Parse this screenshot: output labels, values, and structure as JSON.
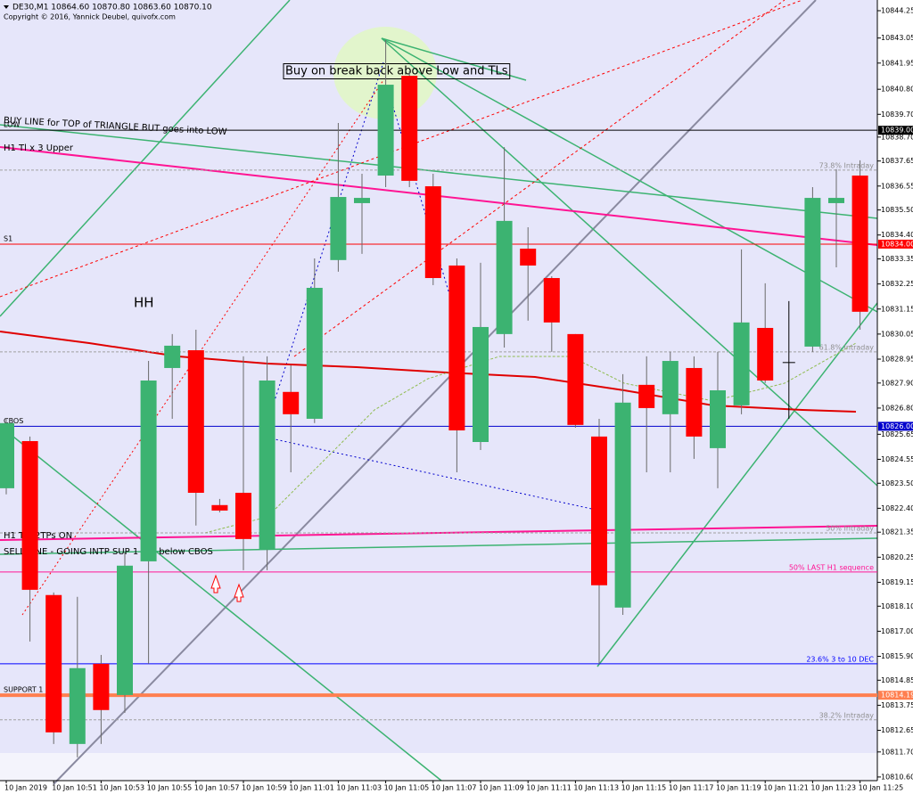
{
  "chart_data": {
    "type": "candlestick",
    "title": "DE30,M1  10864.60 10870.80 10863.60 10870.10",
    "subtitle": "Copyright © 2016, Yannick Deubel, quivofx.com",
    "categories": [
      "10 Jan 2019",
      null,
      "10 Jan 10:51",
      null,
      "10 Jan 10:53",
      null,
      "10 Jan 10:55",
      null,
      "10 Jan 10:57",
      null,
      "10 Jan 10:59",
      null,
      "10 Jan 11:01",
      null,
      "10 Jan 11:03",
      null,
      "10 Jan 11:05",
      null,
      "10 Jan 11:07",
      null,
      "10 Jan 11:09",
      null,
      "10 Jan 11:11",
      null,
      "10 Jan 11:13",
      null,
      "10 Jan 11:15",
      null,
      "10 Jan 11:17",
      null,
      "10 Jan 11:19",
      null,
      "10 Jan 11:21",
      null,
      "10 Jan 11:23",
      null,
      "10 Jan 11:25"
    ],
    "open": [
      10823.28,
      10825.35,
      10818.59,
      10812.05,
      10815.57,
      10814.2,
      10820.07,
      10828.56,
      10829.34,
      10822.54,
      10823.08,
      10820.58,
      10827.51,
      10826.33,
      10833.3,
      10835.8,
      10837.01,
      10841.39,
      10836.54,
      10833.06,
      10825.31,
      10830.05,
      10833.8,
      10832.51,
      10830.05,
      10825.55,
      10818.04,
      10827.82,
      10826.53,
      10828.56,
      10825.04,
      10826.92,
      10830.32,
      10828.8,
      10829.5,
      10835.8,
      10837.01
    ],
    "high": [
      10826.33,
      10825.55,
      10818.7,
      10818.51,
      10815.96,
      10820.46,
      10828.87,
      10830.05,
      10830.24,
      10822.81,
      10829.07,
      10829.07,
      10828.68,
      10833.37,
      10839.32,
      10837.09,
      10842.96,
      10841.59,
      10837.09,
      10833.37,
      10833.18,
      10838.26,
      10834.74,
      10832.59,
      10830.05,
      10826.33,
      10828.29,
      10829.07,
      10829.27,
      10829.07,
      10829.27,
      10833.77,
      10832.28,
      10831.5,
      10836.5,
      10837.29,
      10837.68
    ],
    "low": [
      10823.01,
      10816.55,
      10812.05,
      10811.46,
      10812.05,
      10813.42,
      10815.57,
      10826.33,
      10821.64,
      10822.22,
      10819.68,
      10819.68,
      10823.98,
      10826.14,
      10832.79,
      10833.57,
      10836.5,
      10836.5,
      10832.2,
      10823.98,
      10824.96,
      10829.46,
      10830.64,
      10829.27,
      10825.94,
      10815.57,
      10817.72,
      10823.98,
      10823.98,
      10824.57,
      10823.28,
      10826.53,
      10827.9,
      10826.33,
      10829.27,
      10832.98,
      10830.24
    ],
    "close": [
      10826.14,
      10818.82,
      10812.56,
      10815.38,
      10813.54,
      10819.88,
      10828.01,
      10829.54,
      10823.08,
      10822.3,
      10821.05,
      10828.01,
      10826.53,
      10832.08,
      10836.07,
      10836.03,
      10841.0,
      10836.78,
      10832.51,
      10825.82,
      10830.36,
      10835.02,
      10833.06,
      10830.56,
      10826.06,
      10819.02,
      10827.04,
      10826.8,
      10828.87,
      10825.55,
      10827.58,
      10830.56,
      10828.01,
      10828.8,
      10836.03,
      10836.03,
      10831.03
    ],
    "up_color": "#3cb371",
    "down_color": "#ff0000",
    "doji_color": "#000000",
    "ylim": [
      10810.44,
      10844.72
    ],
    "yticks": [
      10844.25,
      10843.05,
      10841.95,
      {
        "value": 10840.8,
        "label": "10840.80"
      },
      {
        "value": 10839.7,
        "label": "10839.70"
      },
      {
        "value": 10838.7,
        "label": "10838.70"
      },
      10837.65,
      10836.55,
      {
        "value": 10835.5,
        "label": "10835.50"
      },
      {
        "value": 10834.4,
        "label": "10834.40"
      },
      10833.35,
      10832.25,
      10831.15,
      10830.05,
      10828.95,
      {
        "value": 10827.9,
        "label": "10827.90"
      },
      {
        "value": 10826.8,
        "label": "10826.80"
      },
      10825.65,
      10824.55,
      {
        "value": 10823.5,
        "label": "10823.50"
      },
      {
        "value": 10822.4,
        "label": "10822.40"
      },
      10821.35,
      10820.25,
      10819.15,
      {
        "value": 10818.1,
        "label": "10818.10"
      },
      {
        "value": 10817,
        "label": "10817.00"
      },
      {
        "value": 10815.9,
        "label": "10815.90"
      },
      10814.85,
      10813.75,
      10812.65,
      {
        "value": 10811.7,
        "label": "10811.70"
      },
      {
        "value": 10810.6,
        "label": "10810.60"
      }
    ],
    "levels": [
      {
        "name": "LOW",
        "value": 10839,
        "label": "10839.00",
        "color": "#000000"
      },
      {
        "name": "S1",
        "value": 10834,
        "label": "10834.00",
        "color": "#ff0000"
      },
      {
        "name": "CBOS",
        "value": 10826,
        "label": "10826.00",
        "color": "#0000cd"
      },
      {
        "name": "SUPPORT 1",
        "value": 10814.19,
        "label": "10814.19",
        "color": "#ff7f50"
      }
    ],
    "fib_levels": [
      {
        "value": 10837.25,
        "label": "73.8%  Intraday",
        "color": "#a0a0a0"
      },
      {
        "value": 10829.27,
        "label": "61.8%  Intraday",
        "color": "#a0a0a0"
      },
      {
        "value": 10821.32,
        "label": "50%  Intraday",
        "color": "#a0a0a0"
      },
      {
        "value": 10819.6,
        "label": "50%  LAST H1 sequence",
        "color": "#ff1493"
      },
      {
        "value": 10815.57,
        "label": "23.6% 3 to 10 DEC",
        "color": "#0000ff"
      },
      {
        "value": 10813.11,
        "label": "38.2%  Intraday",
        "color": "#a0a0a0"
      }
    ],
    "annotations": [
      "Buy on break back above Low and TLs",
      "BUY LINE for TOP of TRIANGLE BUT goes into LOW",
      "H1 Tl x 3 Upper",
      "HH",
      "H1 Tl x2TPs ON",
      "SELL LINE - GOING INTP SUP 1 but below CBOS"
    ]
  }
}
